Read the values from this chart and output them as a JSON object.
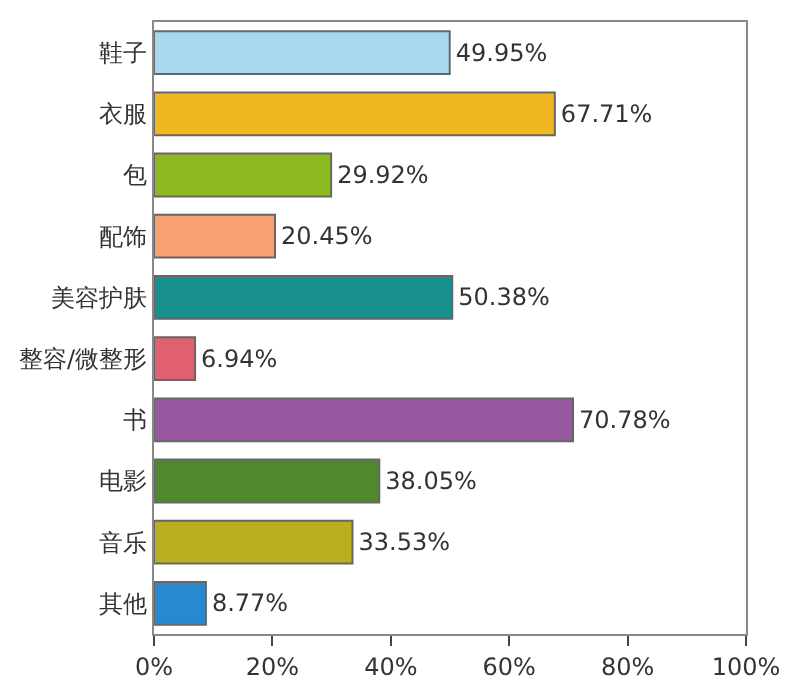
{
  "chart_data": {
    "type": "bar",
    "orientation": "horizontal",
    "categories": [
      "鞋子",
      "衣服",
      "包",
      "配饰",
      "美容护肤",
      "整容/微整形",
      "书",
      "电影",
      "音乐",
      "其他"
    ],
    "values": [
      49.95,
      67.71,
      29.92,
      20.45,
      50.38,
      6.94,
      70.78,
      38.05,
      33.53,
      8.77
    ],
    "value_labels": [
      "49.95%",
      "67.71%",
      "29.92%",
      "20.45%",
      "50.38%",
      "6.94%",
      "70.78%",
      "38.05%",
      "33.53%",
      "8.77%"
    ],
    "colors": [
      "#a8d8f0",
      "#f0b820",
      "#8cb820",
      "#f8a070",
      "#189090",
      "#e06070",
      "#9858a0",
      "#508830",
      "#b8b020",
      "#2888d0"
    ],
    "xlim": [
      0,
      100
    ],
    "xticks": [
      {
        "value": 0,
        "label": "0%"
      },
      {
        "value": 20,
        "label": "20%"
      },
      {
        "value": 40,
        "label": "40%"
      },
      {
        "value": 60,
        "label": "60%"
      },
      {
        "value": 80,
        "label": "80%"
      },
      {
        "value": 100,
        "label": "100%"
      }
    ],
    "grid": false,
    "legend": false
  }
}
